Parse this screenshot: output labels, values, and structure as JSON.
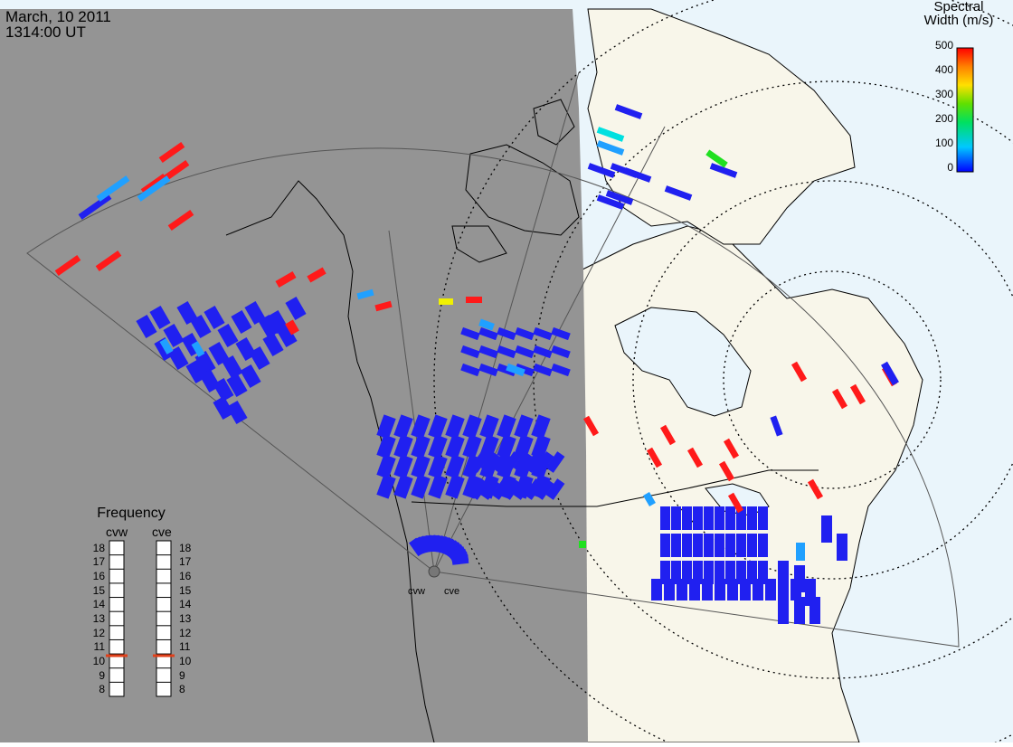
{
  "header": {
    "date": "March, 10 2011",
    "time": "1314:00 UT"
  },
  "colorbar": {
    "title_line1": "Spectral",
    "title_line2": "Width (m/s)",
    "ticks": [
      "500",
      "400",
      "300",
      "200",
      "100",
      "0"
    ],
    "min_value": 0,
    "max_value": 500
  },
  "frequency_panel": {
    "title": "Frequency",
    "radars": [
      {
        "name": "cvw",
        "value_mhz": 10.8
      },
      {
        "name": "cve",
        "value_mhz": 10.8
      }
    ],
    "scale": [
      "18",
      "17",
      "16",
      "15",
      "14",
      "13",
      "12",
      "11",
      "10",
      "9",
      "8"
    ]
  },
  "radar_labels": [
    "cvw",
    "cve"
  ],
  "colors": {
    "night": "#949494",
    "day_land": "#f8f6ea",
    "day_ocean": "#eaf5fb",
    "marker": "#e0401a",
    "low": "#2020f0",
    "high": "#ff1a1a"
  }
}
